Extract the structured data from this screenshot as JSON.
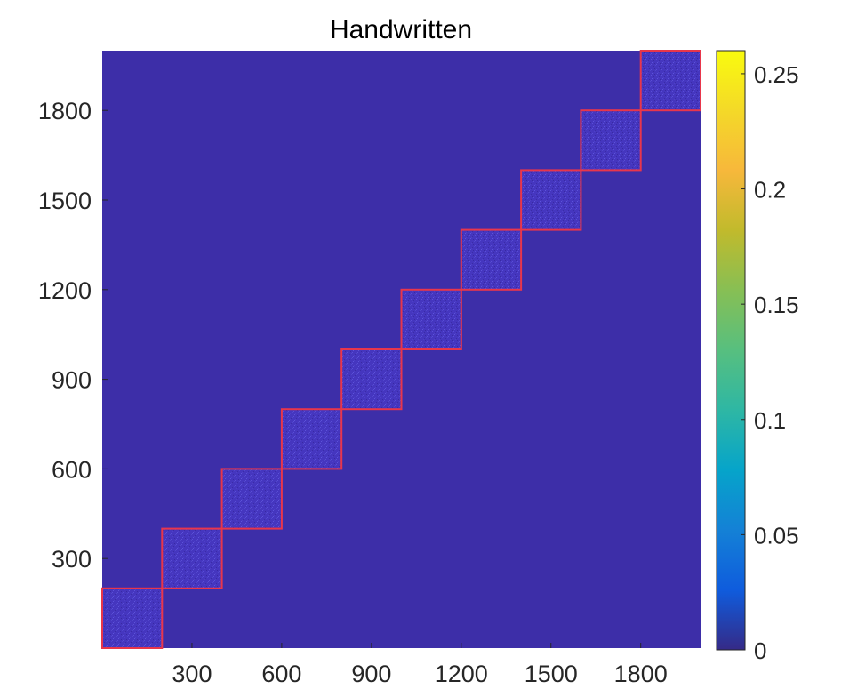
{
  "chart_data": {
    "type": "heatmap",
    "title": "Handwritten",
    "xlabel": "",
    "ylabel": "",
    "xlim": [
      0,
      2000
    ],
    "ylim": [
      0,
      2000
    ],
    "x_ticks": [
      300,
      600,
      900,
      1200,
      1500,
      1800
    ],
    "y_ticks": [
      300,
      600,
      900,
      1200,
      1500,
      1800
    ],
    "x_tick_labels": [
      "300",
      "600",
      "900",
      "1200",
      "1500",
      "1800"
    ],
    "y_tick_labels": [
      "300",
      "600",
      "900",
      "1200",
      "1500",
      "1800"
    ],
    "background_value": 0,
    "blocks": [
      {
        "start": 0,
        "end": 200,
        "value": 0.015
      },
      {
        "start": 200,
        "end": 400,
        "value": 0.015
      },
      {
        "start": 400,
        "end": 600,
        "value": 0.015
      },
      {
        "start": 600,
        "end": 800,
        "value": 0.015
      },
      {
        "start": 800,
        "end": 1000,
        "value": 0.015
      },
      {
        "start": 1000,
        "end": 1200,
        "value": 0.015
      },
      {
        "start": 1200,
        "end": 1400,
        "value": 0.015
      },
      {
        "start": 1400,
        "end": 1600,
        "value": 0.015
      },
      {
        "start": 1600,
        "end": 1800,
        "value": 0.015
      },
      {
        "start": 1800,
        "end": 2000,
        "value": 0.015
      }
    ],
    "colorbar": {
      "range": [
        0,
        0.26
      ],
      "ticks": [
        0,
        0.05,
        0.1,
        0.15,
        0.2,
        0.25
      ],
      "tick_labels": [
        "0",
        "0.05",
        "0.1",
        "0.15",
        "0.2",
        "0.25"
      ],
      "colormap": "parula"
    },
    "colors": {
      "background": "#3d2ea8",
      "block_fill": "#4536bf",
      "block_outline": "#e8364b"
    }
  }
}
